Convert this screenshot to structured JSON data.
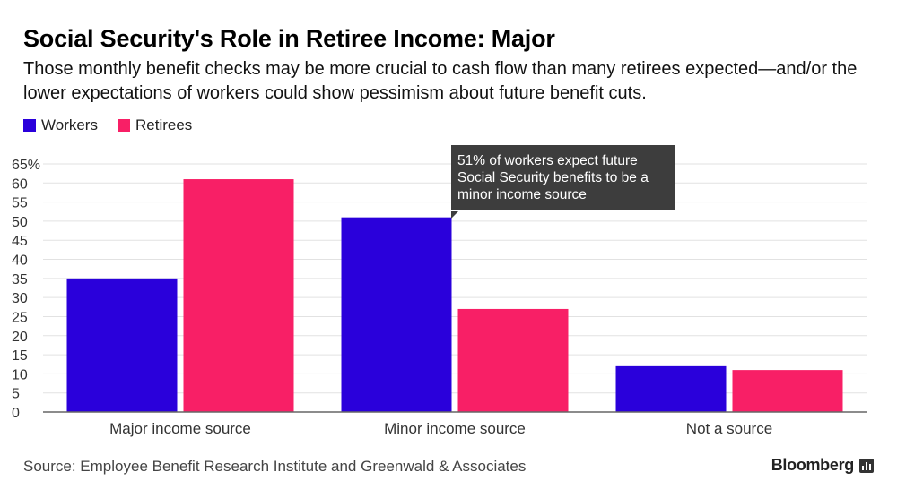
{
  "header": {
    "title": "Social Security's Role in Retiree Income: Major",
    "subtitle": "Those monthly benefit checks may be more crucial to cash flow than many retirees expected—and/or the lower expectations of workers could show pessimism about future benefit cuts."
  },
  "annotation": {
    "text": "51% of workers expect future Social Security benefits to be a minor income source"
  },
  "footer": {
    "source": "Source: Employee Benefit Research Institute and Greenwald & Associates",
    "brand": "Bloomberg",
    "brand_icon": "bloomberg-chart-icon"
  },
  "chart_data": {
    "type": "bar",
    "title": "Social Security's Role in Retiree Income: Major",
    "categories": [
      "Major income source",
      "Minor income source",
      "Not a source"
    ],
    "series": [
      {
        "name": "Workers",
        "color": "#2a00db",
        "values": [
          35,
          51,
          12
        ]
      },
      {
        "name": "Retirees",
        "color": "#f81f66",
        "values": [
          61,
          27,
          11
        ]
      }
    ],
    "yticks": [
      "0",
      "5",
      "10",
      "15",
      "20",
      "25",
      "30",
      "35",
      "40",
      "45",
      "50",
      "55",
      "60",
      "65%"
    ],
    "ylim": [
      0,
      65
    ],
    "grid": true,
    "legend_position": "top-left"
  }
}
